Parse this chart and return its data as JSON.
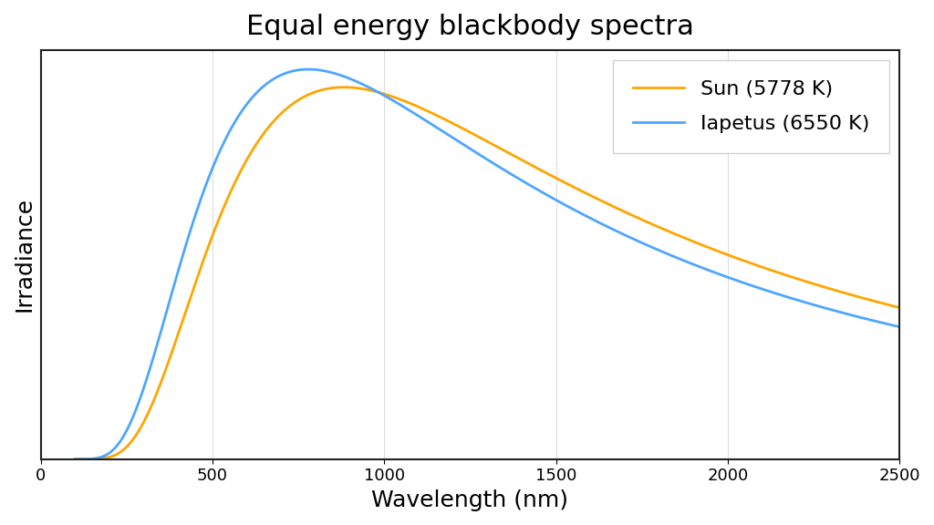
{
  "title": "Equal energy blackbody spectra",
  "xlabel": "Wavelength (nm)",
  "ylabel": "Irradiance",
  "sun_temp": 5778,
  "iapetus_temp": 6550,
  "sun_color": "#FFA500",
  "iapetus_color": "#4DA6FF",
  "sun_label": "Sun (5778 K)",
  "iapetus_label": "Iapetus (6550 K)",
  "xlim": [
    0,
    2500
  ],
  "wavelength_min": 100,
  "wavelength_max": 2500,
  "wavelength_points": 1000,
  "title_fontsize": 22,
  "axis_label_fontsize": 18,
  "legend_fontsize": 16,
  "line_width": 2.0,
  "background_color": "#ffffff",
  "grid_color": "#dddddd",
  "spine_color": "#222222"
}
